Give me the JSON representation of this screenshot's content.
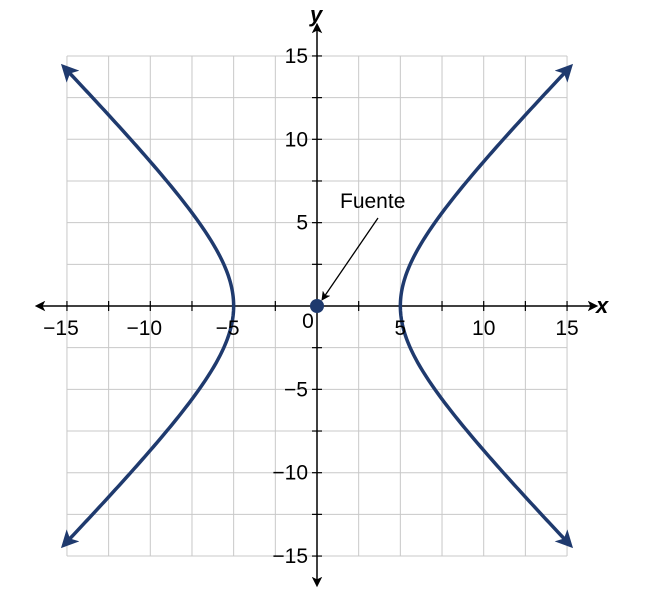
{
  "chart_data": {
    "type": "line",
    "title": "",
    "xlabel": "x",
    "ylabel": "y",
    "xlim": [
      -15,
      15
    ],
    "ylim": [
      -15,
      15
    ],
    "grid": true,
    "grid_step": 2.5,
    "x_ticks": [
      {
        "value": -15,
        "label": "−15"
      },
      {
        "value": -10,
        "label": "−10"
      },
      {
        "value": -5,
        "label": "−5"
      },
      {
        "value": 0,
        "label": "0"
      },
      {
        "value": 5,
        "label": "5"
      },
      {
        "value": 10,
        "label": "10"
      },
      {
        "value": 15,
        "label": "15"
      }
    ],
    "y_ticks": [
      {
        "value": 15,
        "label": "15"
      },
      {
        "value": 10,
        "label": "10"
      },
      {
        "value": 5,
        "label": "5"
      },
      {
        "value": -5,
        "label": "−5"
      },
      {
        "value": -10,
        "label": "−10"
      },
      {
        "value": -15,
        "label": "−15"
      }
    ],
    "series": [
      {
        "equation": "x^2/25 - y^2/25 = 1",
        "branches": [
          {
            "x": [
              -15,
              -12.5,
              -10,
              -7.5,
              -6,
              -5,
              -6,
              -7.5,
              -10,
              -12.5,
              -15
            ],
            "y": [
              14.14,
              11.46,
              8.66,
              5.59,
              3.32,
              0,
              -3.32,
              -5.59,
              -8.66,
              -11.46,
              -14.14
            ]
          },
          {
            "x": [
              15,
              12.5,
              10,
              7.5,
              6,
              5,
              6,
              7.5,
              10,
              12.5,
              15
            ],
            "y": [
              14.14,
              11.46,
              8.66,
              5.59,
              3.32,
              0,
              -3.32,
              -5.59,
              -8.66,
              -11.46,
              -14.14
            ]
          }
        ],
        "color": "#1f3a6e",
        "arrow_ends": true
      }
    ],
    "points": [
      {
        "x": 0,
        "y": 0,
        "color": "#1f3a6e"
      }
    ],
    "annotations": [
      {
        "text": "Fuente",
        "target": {
          "x": 0,
          "y": 0
        }
      }
    ]
  }
}
